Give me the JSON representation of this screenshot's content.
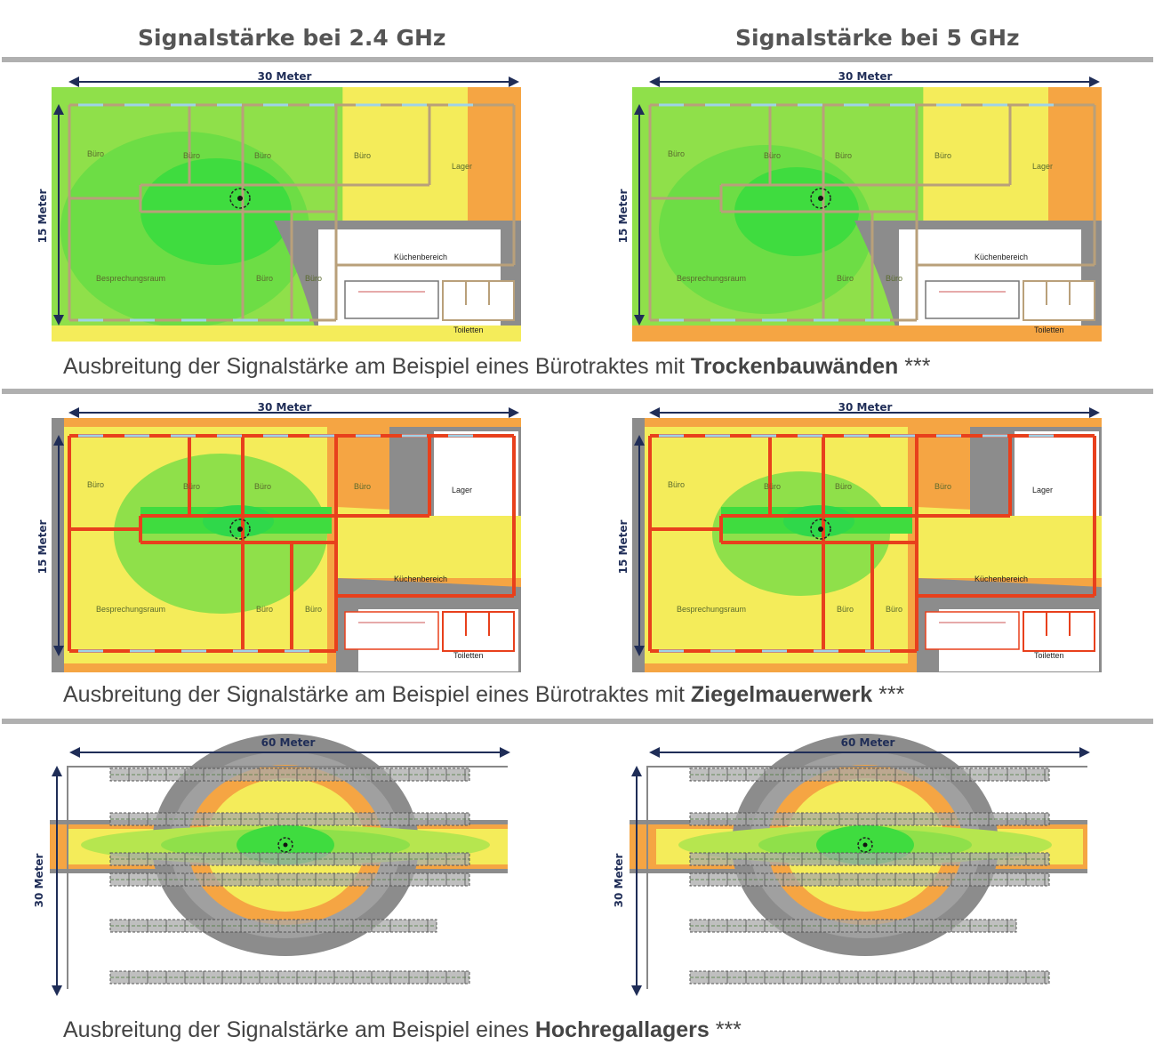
{
  "header": {
    "left_title": "Signalstärke bei 2.4 GHz",
    "right_title": "Signalstärke bei 5 GHz"
  },
  "captions": [
    {
      "prefix": "Ausbreitung der Signalstärke am Beispiel eines Bürotraktes mit ",
      "bold": "Trockenbauwänden",
      "suffix": " ***"
    },
    {
      "prefix": "Ausbreitung der Signalstärke am Beispiel eines Bürotraktes mit ",
      "bold": "Ziegelmauerwerk",
      "suffix": " ***"
    },
    {
      "prefix": "Ausbreitung der Signalstärke am Beispiel eines ",
      "bold": "Hochregallagers",
      "suffix": " ***"
    }
  ],
  "office": {
    "width_label": "30 Meter",
    "height_label": "15 Meter",
    "rooms": {
      "buero": "Büro",
      "lager": "Lager",
      "besprechung": "Besprechungsraum",
      "kueche": "Küchenbereich",
      "toiletten": "Toiletten"
    }
  },
  "warehouse": {
    "width_label": "60 Meter",
    "height_label": "30 Meter"
  },
  "colors": {
    "strong": "#3fdc3f",
    "good": "#8fe04a",
    "medium": "#f4ec5a",
    "weak": "#f5a543",
    "very_weak": "#8c8c8c",
    "drywall": "#b9a07a",
    "brick": "#e8401c",
    "dimension": "#1f2d57",
    "divider": "#b0b0b0"
  }
}
